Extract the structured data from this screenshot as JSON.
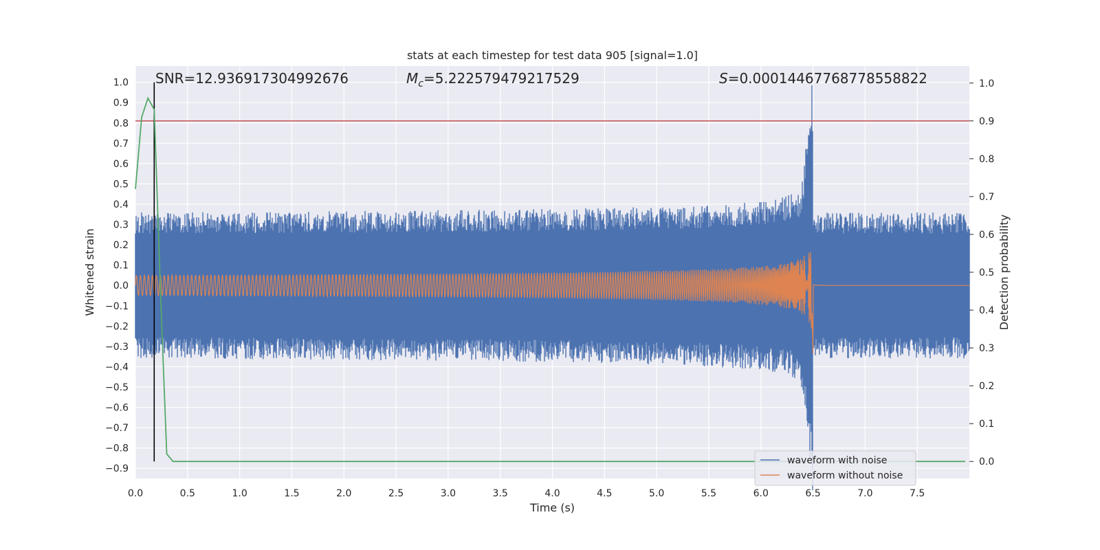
{
  "chart_data": {
    "type": "line",
    "title": "stats at each timestep for test data 905 [signal=1.0]",
    "xlabel": "Time (s)",
    "ylabel": "Whitened strain",
    "y2label": "Detection probability",
    "xlim": [
      0,
      8.0
    ],
    "ylim": [
      -0.95,
      1.08
    ],
    "y2lim": [
      -0.045,
      1.045
    ],
    "x_ticks": [
      "0.0",
      "0.5",
      "1.0",
      "1.5",
      "2.0",
      "2.5",
      "3.0",
      "3.5",
      "4.0",
      "4.5",
      "5.0",
      "5.5",
      "6.0",
      "6.5",
      "7.0",
      "7.5"
    ],
    "y_ticks": [
      "1.0",
      "0.9",
      "0.8",
      "0.7",
      "0.6",
      "0.5",
      "0.4",
      "0.3",
      "0.2",
      "0.1",
      "0.0",
      "−0.1",
      "−0.2",
      "−0.3",
      "−0.4",
      "−0.5",
      "−0.6",
      "−0.7",
      "−0.8",
      "−0.9"
    ],
    "y2_ticks": [
      "1.0",
      "0.9",
      "0.8",
      "0.7",
      "0.6",
      "0.5",
      "0.4",
      "0.3",
      "0.2",
      "0.1",
      "0.0"
    ],
    "annotations": {
      "snr": "SNR=12.936917304992676",
      "mc_symbol": "M",
      "mc_sub": "c",
      "mc_value": "=5.222579479217529",
      "s_symbol": "S",
      "s_value": "=0.00014467768778558822"
    },
    "threshold_probability": 0.9,
    "marker_time": 0.18,
    "merger_time": 6.5,
    "series": [
      {
        "name": "waveform with noise",
        "color": "#4c72b0",
        "noise_amplitude": 0.3
      },
      {
        "name": "waveform without noise",
        "color": "#dd8452",
        "start_amplitude": 0.05,
        "peak_amplitude": 0.85
      }
    ],
    "probability_series": {
      "color": "#55a868",
      "x": [
        0.0,
        0.06,
        0.12,
        0.18,
        0.24,
        0.3,
        0.36,
        0.42,
        7.96
      ],
      "y": [
        0.72,
        0.91,
        0.96,
        0.93,
        0.45,
        0.02,
        0.0,
        0.0,
        0.0
      ]
    },
    "legend_position": "lower-right"
  }
}
